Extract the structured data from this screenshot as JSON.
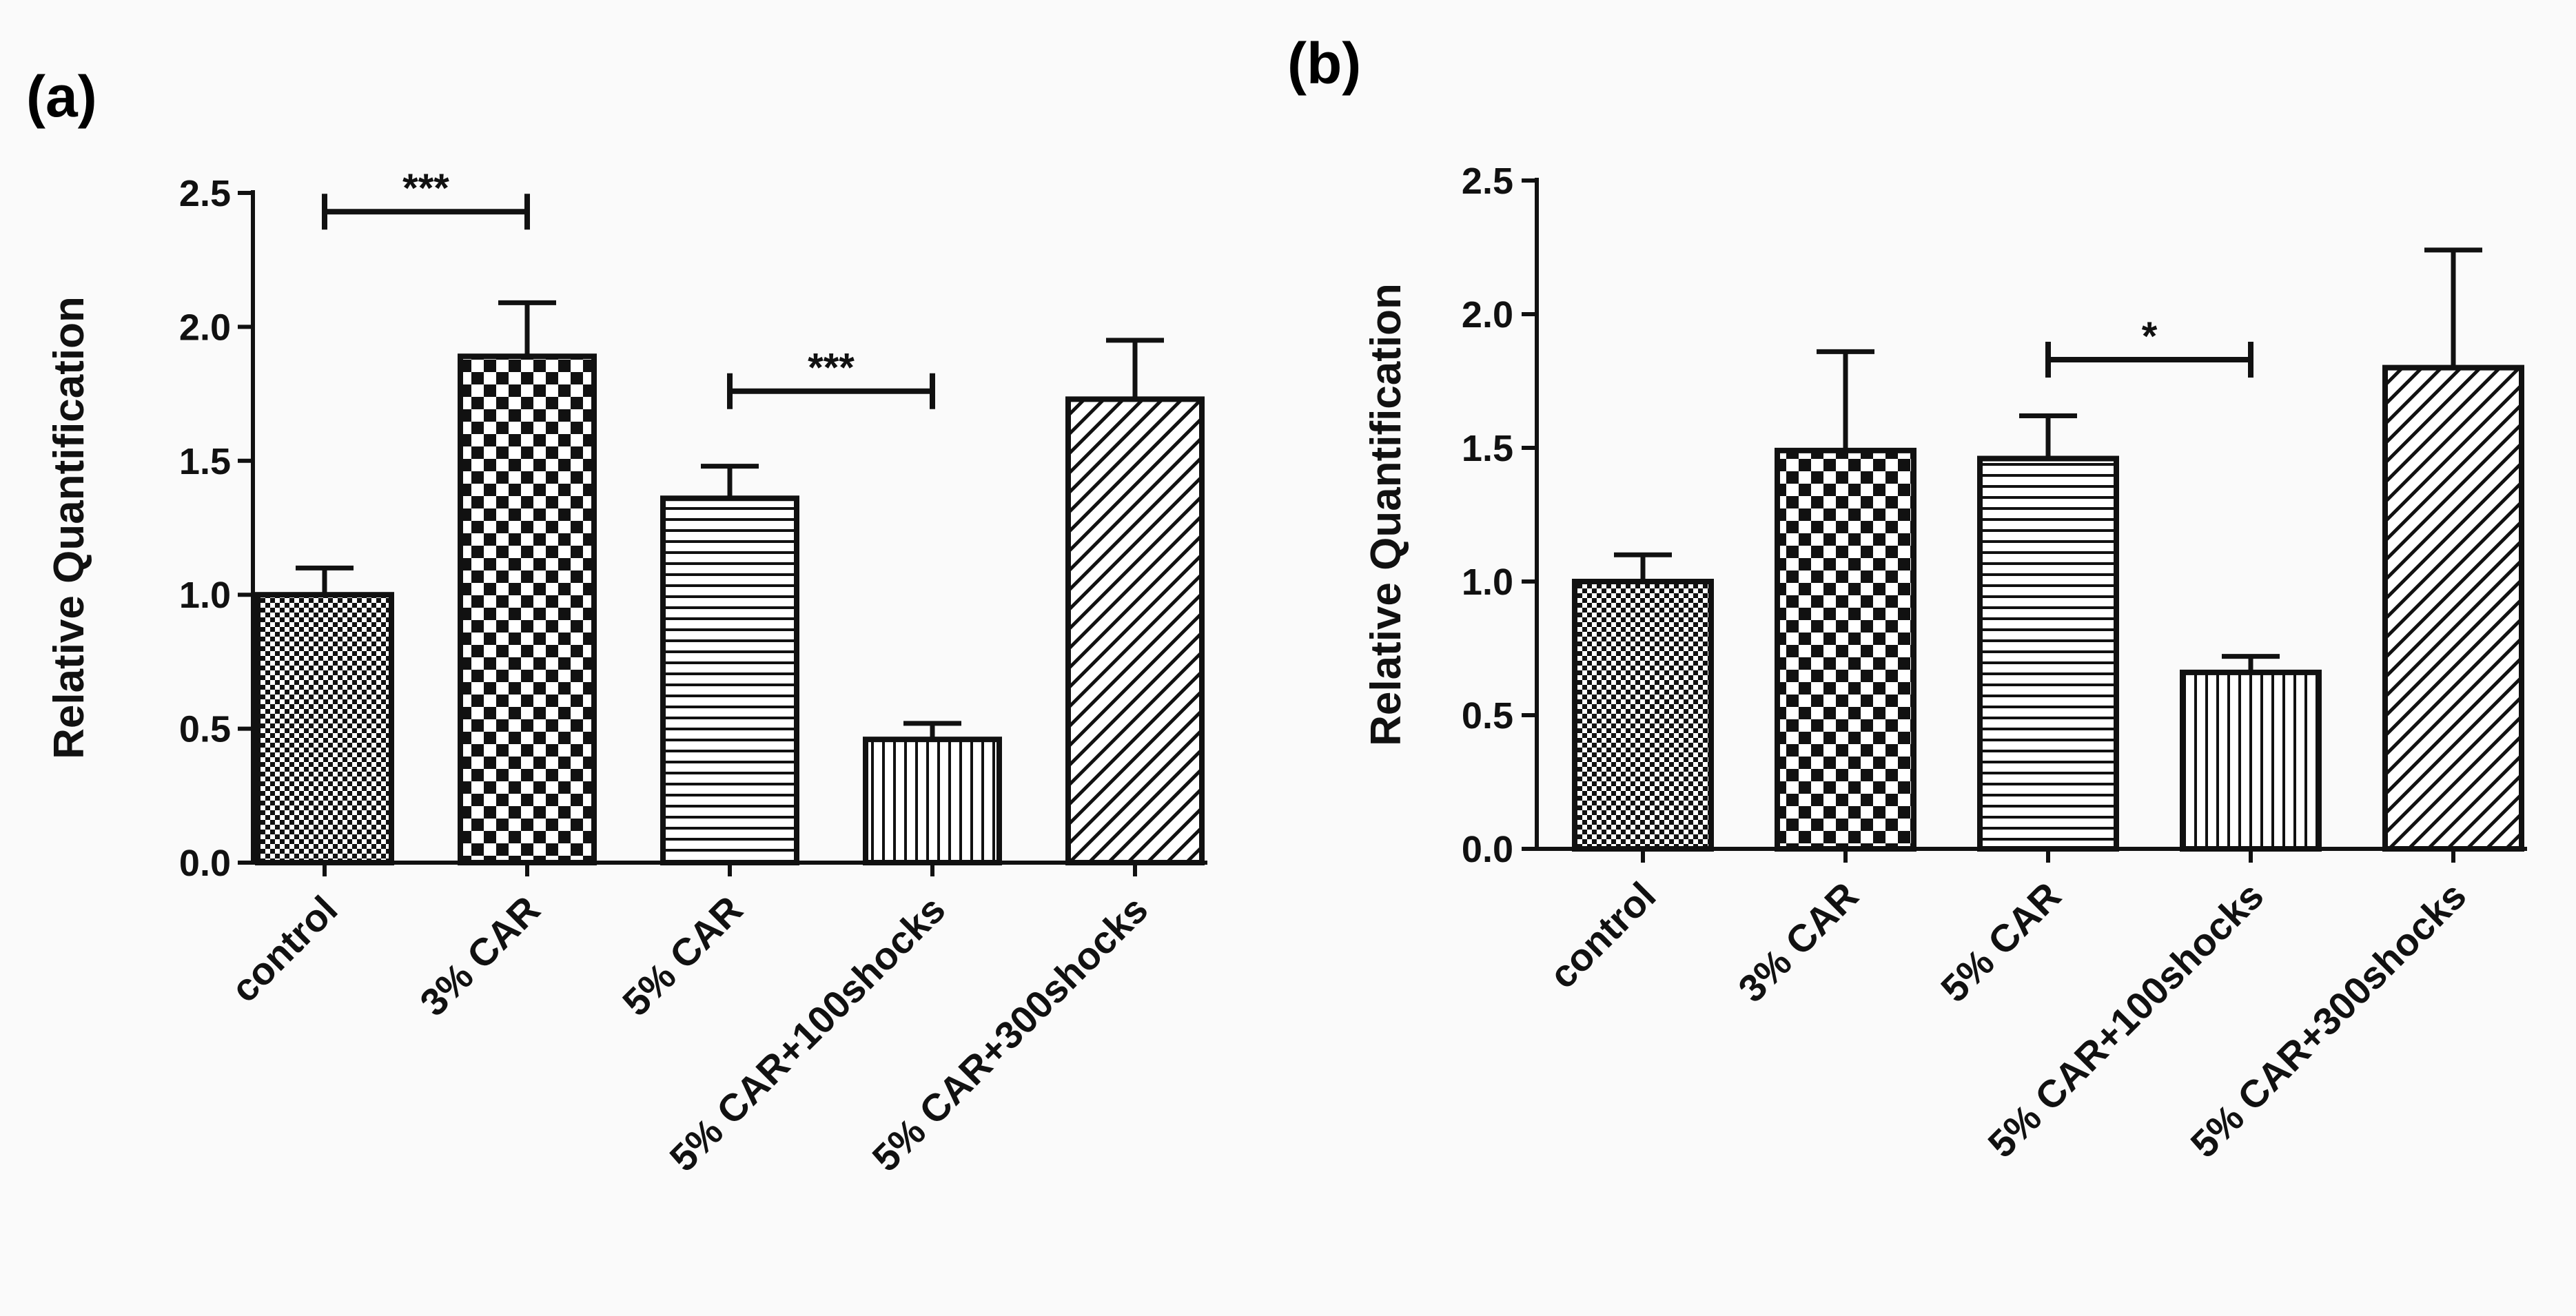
{
  "figure": {
    "panel_labels": [
      "(a)",
      "(b)"
    ]
  },
  "chart_data": [
    {
      "panel": "(a)",
      "type": "bar",
      "ylabel": "Relative Quantification",
      "xlabel": "",
      "ylim": [
        0,
        2.5
      ],
      "yticks": [
        0.0,
        0.5,
        1.0,
        1.5,
        2.0,
        2.5
      ],
      "ytick_labels": [
        "0.0",
        "0.5",
        "1.0",
        "1.5",
        "2.0",
        "2.5"
      ],
      "categories": [
        "control",
        "3% CAR",
        "5% CAR",
        "5% CAR+100shocks",
        "5% CAR+300shocks"
      ],
      "values": [
        1.0,
        1.89,
        1.36,
        0.46,
        1.73
      ],
      "errors": [
        0.1,
        0.2,
        0.12,
        0.06,
        0.22
      ],
      "patterns": [
        "fine-checker",
        "checker",
        "horizontal",
        "vertical",
        "diagonal"
      ],
      "significance": [
        {
          "from": 0,
          "to": 1,
          "y": 2.43,
          "label": "***"
        },
        {
          "from": 2,
          "to": 3,
          "y": 1.76,
          "label": "***"
        }
      ]
    },
    {
      "panel": "(b)",
      "type": "bar",
      "ylabel": "Relative Quantification",
      "xlabel": "",
      "ylim": [
        0,
        2.5
      ],
      "yticks": [
        0.0,
        0.5,
        1.0,
        1.5,
        2.0,
        2.5
      ],
      "ytick_labels": [
        "0.0",
        "0.5",
        "1.0",
        "1.5",
        "2.0",
        "2.5"
      ],
      "categories": [
        "control",
        "3% CAR",
        "5% CAR",
        "5% CAR+100shocks",
        "5% CAR+300shocks"
      ],
      "values": [
        1.0,
        1.49,
        1.46,
        0.66,
        1.8
      ],
      "errors": [
        0.1,
        0.37,
        0.16,
        0.06,
        0.44
      ],
      "patterns": [
        "fine-checker",
        "checker",
        "horizontal",
        "vertical",
        "diagonal"
      ],
      "significance": [
        {
          "from": 2,
          "to": 3,
          "y": 1.83,
          "label": "*"
        }
      ]
    }
  ]
}
